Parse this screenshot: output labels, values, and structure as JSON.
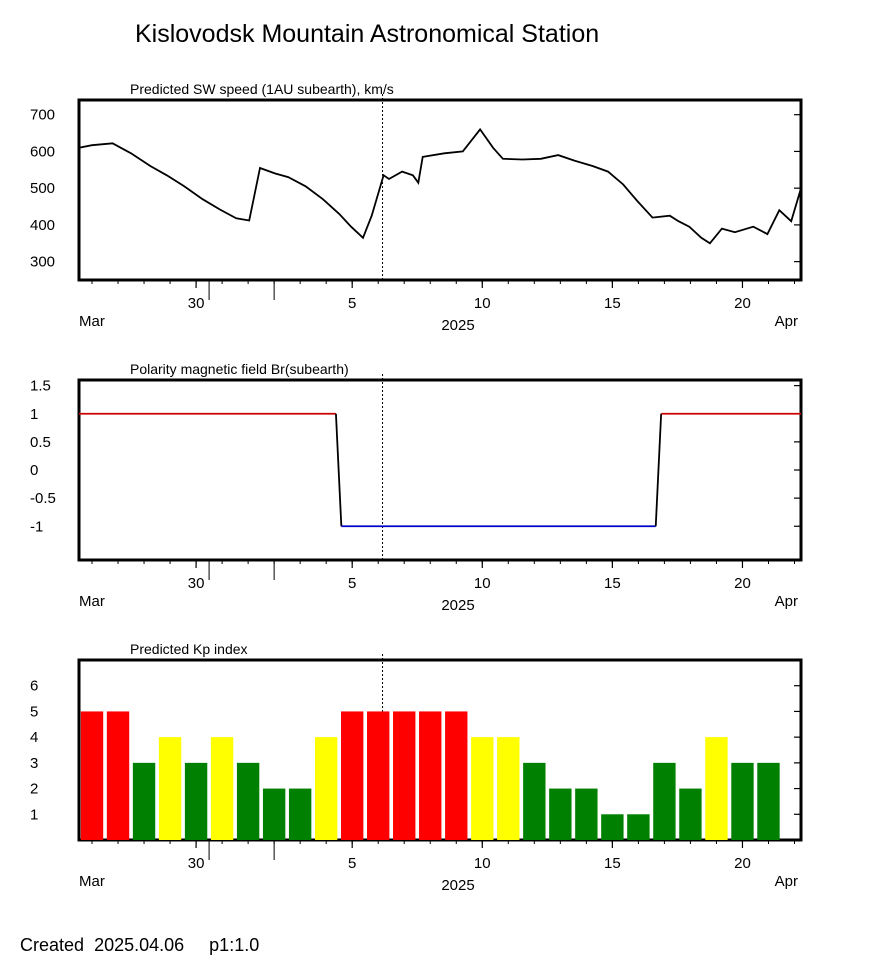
{
  "page": {
    "title": "Kislovodsk Mountain Astronomical Station",
    "created_label": "Created",
    "created_date": "2025.04.06",
    "page_ref": "p1:1.0"
  },
  "colors": {
    "kp_red": "#ff0000",
    "kp_yellow": "#ffff00",
    "kp_green": "#008000",
    "polarity_positive": "#cc0000",
    "polarity_negative": "#0000cc"
  },
  "chart_data": [
    {
      "type": "line",
      "title": "Predicted SW speed (1AU subearth), km/s",
      "x_unit": "day",
      "x_range": [
        "2025-03-25T12:00",
        "2025-04-22T06:00"
      ],
      "ylim": [
        250,
        740
      ],
      "yticks": [
        "700",
        "600",
        "500",
        "400",
        "300"
      ],
      "ytick_values": [
        700,
        600,
        500,
        400,
        300
      ],
      "xtick_labels": [
        "30",
        "5",
        "10",
        "15",
        "20"
      ],
      "xtick_dates": [
        "2025-03-30",
        "2025-04-05",
        "2025-04-10",
        "2025-04-15",
        "2025-04-20"
      ],
      "month_left": "Mar",
      "year": "2025",
      "month_right": "Apr",
      "current_time_marker": "2025-04-06T04:00",
      "series": [
        {
          "x": [
            "2025-03-25T12:00",
            "2025-03-26T00:00",
            "2025-03-26T19:00",
            "2025-03-27T12:00",
            "2025-03-28T06:00",
            "2025-03-28T21:00",
            "2025-03-29T13:00",
            "2025-03-30T06:00",
            "2025-03-30T22:00",
            "2025-03-31T13:00",
            "2025-04-01T01:00",
            "2025-04-01T11:00",
            "2025-04-02T01:00",
            "2025-04-02T13:00",
            "2025-04-03T05:00",
            "2025-04-03T21:00",
            "2025-04-04T12:00",
            "2025-04-04T23:00",
            "2025-04-05T10:00",
            "2025-04-05T18:00",
            "2025-04-06T05:00",
            "2025-04-06T10:00",
            "2025-04-06T22:00",
            "2025-04-07T08:00",
            "2025-04-07T13:00",
            "2025-04-07T17:00",
            "2025-04-08T13:00",
            "2025-04-09T06:00",
            "2025-04-09T22:00",
            "2025-04-10T10:00",
            "2025-04-10T19:00",
            "2025-04-11T13:00",
            "2025-04-12T06:00",
            "2025-04-12T22:00",
            "2025-04-13T13:00",
            "2025-04-14T06:00",
            "2025-04-14T20:00",
            "2025-04-15T10:00",
            "2025-04-15T23:00",
            "2025-04-16T13:00",
            "2025-04-17T05:00",
            "2025-04-17T13:00",
            "2025-04-17T23:00",
            "2025-04-18T10:00",
            "2025-04-18T18:00",
            "2025-04-19T05:00",
            "2025-04-19T17:00",
            "2025-04-20T10:00",
            "2025-04-20T23:00",
            "2025-04-21T10:00",
            "2025-04-21T21:00",
            "2025-04-22T06:00"
          ],
          "values": [
            610,
            617,
            622,
            595,
            560,
            535,
            505,
            470,
            442,
            418,
            412,
            555,
            540,
            530,
            505,
            470,
            430,
            395,
            365,
            425,
            535,
            525,
            545,
            535,
            515,
            585,
            595,
            600,
            660,
            610,
            580,
            578,
            580,
            590,
            575,
            560,
            545,
            510,
            465,
            420,
            425,
            410,
            395,
            365,
            350,
            390,
            380,
            395,
            375,
            440,
            410,
            500
          ]
        }
      ]
    },
    {
      "type": "line",
      "title": "Polarity magnetic field  Br(subearth)",
      "x_unit": "day",
      "x_range": [
        "2025-03-25T12:00",
        "2025-04-22T06:00"
      ],
      "ylim": [
        -1.6,
        1.6
      ],
      "yticks": [
        "1.5",
        "1",
        "0.5",
        "0",
        "-0.5",
        "-1"
      ],
      "ytick_values": [
        1.5,
        1,
        0.5,
        0,
        -0.5,
        -1
      ],
      "xtick_labels": [
        "30",
        "5",
        "10",
        "15",
        "20"
      ],
      "xtick_dates": [
        "2025-03-30",
        "2025-04-05",
        "2025-04-10",
        "2025-04-15",
        "2025-04-20"
      ],
      "month_left": "Mar",
      "year": "2025",
      "month_right": "Apr",
      "current_time_marker": "2025-04-06T04:00",
      "series": [
        {
          "x": [
            "2025-03-25T12:00",
            "2025-04-04T09:00",
            "2025-04-04T14:00",
            "2025-04-16T16:00",
            "2025-04-16T21:00",
            "2025-04-22T06:00"
          ],
          "values": [
            1,
            1,
            -1,
            -1,
            1,
            1
          ]
        }
      ]
    },
    {
      "type": "bar",
      "title": "Predicted Kp index",
      "x_unit": "day",
      "x_range": [
        "2025-03-25T12:00",
        "2025-04-22T06:00"
      ],
      "ylim": [
        0,
        7
      ],
      "yticks": [
        "6",
        "5",
        "4",
        "3",
        "2",
        "1"
      ],
      "ytick_values": [
        6,
        5,
        4,
        3,
        2,
        1
      ],
      "xtick_labels": [
        "30",
        "5",
        "10",
        "15",
        "20"
      ],
      "xtick_dates": [
        "2025-03-30",
        "2025-04-05",
        "2025-04-10",
        "2025-04-15",
        "2025-04-20"
      ],
      "month_left": "Mar",
      "year": "2025",
      "month_right": "Apr",
      "current_time_marker": "2025-04-06T04:00",
      "categories": [
        "2025-03-26",
        "2025-03-27",
        "2025-03-28",
        "2025-03-29",
        "2025-03-30",
        "2025-03-31",
        "2025-04-01",
        "2025-04-02",
        "2025-04-03",
        "2025-04-04",
        "2025-04-05",
        "2025-04-06",
        "2025-04-07",
        "2025-04-08",
        "2025-04-09",
        "2025-04-10",
        "2025-04-11",
        "2025-04-12",
        "2025-04-13",
        "2025-04-14",
        "2025-04-15",
        "2025-04-16",
        "2025-04-17",
        "2025-04-18",
        "2025-04-19",
        "2025-04-20",
        "2025-04-21"
      ],
      "values": [
        5,
        5,
        3,
        4,
        3,
        4,
        3,
        2,
        2,
        4,
        5,
        5,
        5,
        5,
        5,
        4,
        4,
        3,
        2,
        2,
        1,
        1,
        3,
        2,
        4,
        3,
        3
      ],
      "bar_colors": [
        "red",
        "red",
        "green",
        "yellow",
        "green",
        "yellow",
        "green",
        "green",
        "green",
        "yellow",
        "red",
        "red",
        "red",
        "red",
        "red",
        "yellow",
        "yellow",
        "green",
        "green",
        "green",
        "green",
        "green",
        "green",
        "green",
        "yellow",
        "green",
        "green"
      ]
    }
  ]
}
